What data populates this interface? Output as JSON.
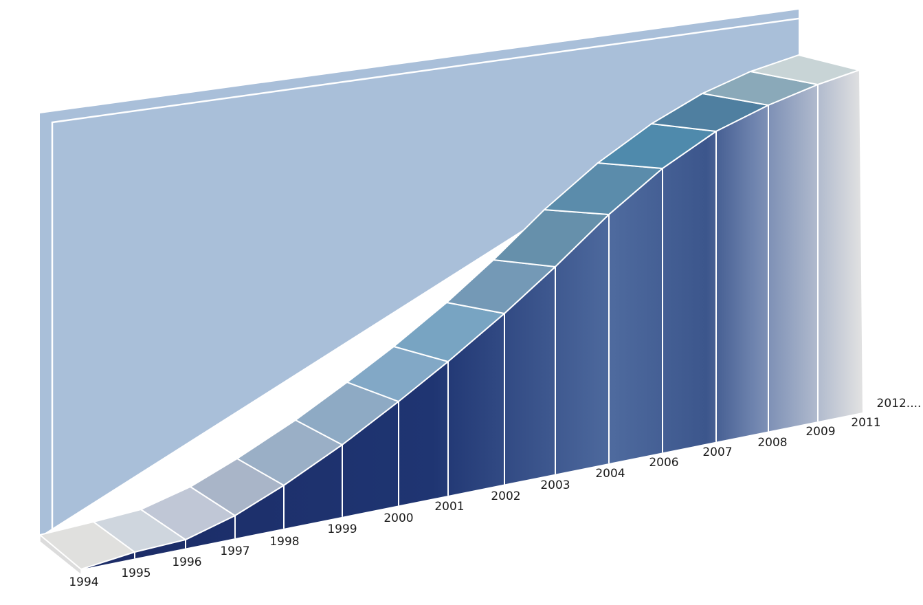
{
  "labels": [
    "1994",
    "1995",
    "1996",
    "1997",
    "1998",
    "1999",
    "2000",
    "2001",
    "2002",
    "2003",
    "2004",
    "2006",
    "2007",
    "2008",
    "2009",
    "2011",
    "2012...."
  ]
}
